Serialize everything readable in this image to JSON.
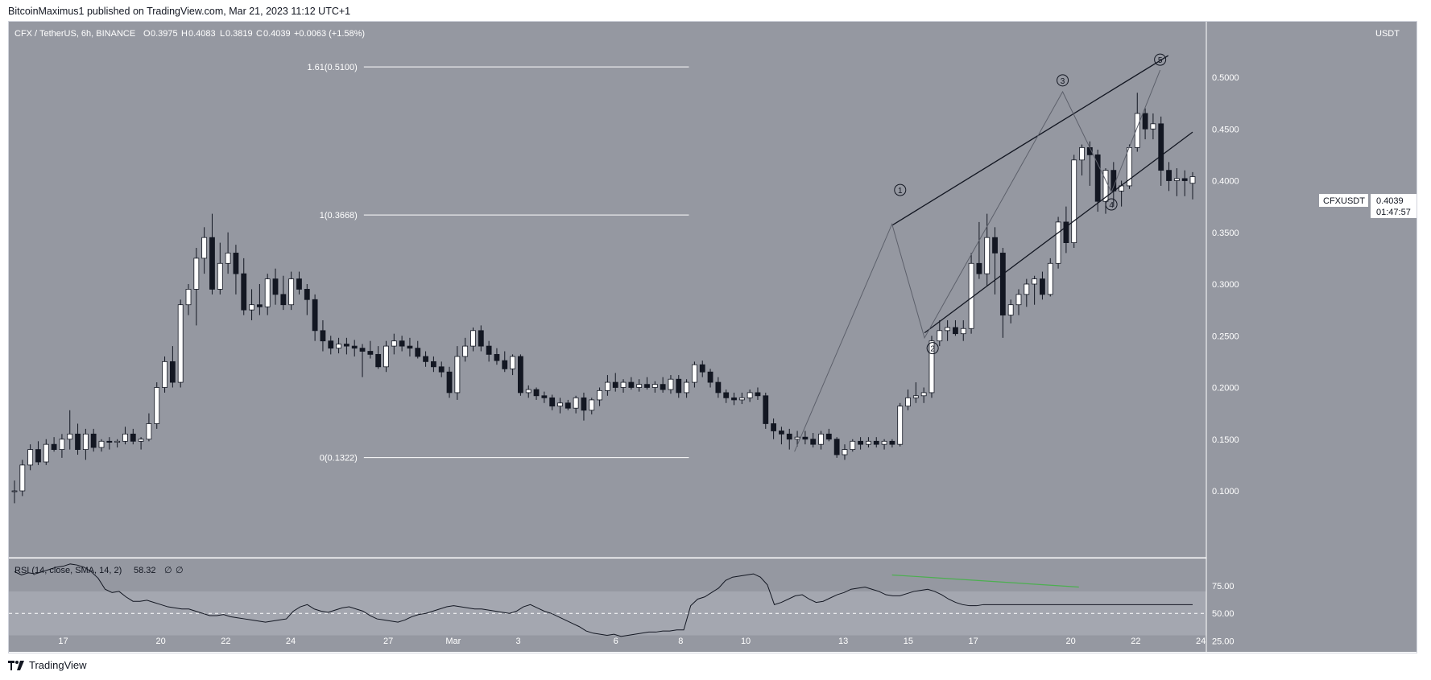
{
  "header": {
    "published_by": "BitcoinMaximus1 published on TradingView.com, Mar 21, 2023 11:12 UTC+1"
  },
  "legend": {
    "symbol": "CFX / TetherUS, 6h, BINANCE",
    "o_label": "O",
    "o_value": "0.3975",
    "h_label": "H",
    "h_value": "0.4083",
    "l_label": "L",
    "l_value": "0.3819",
    "c_label": "C",
    "c_value": "0.4039",
    "change": "+0.0063 (+1.58%)"
  },
  "price_axis": {
    "currency": "USDT",
    "ticks": [
      "0.5000",
      "0.4500",
      "0.4000",
      "0.3500",
      "0.3000",
      "0.2500",
      "0.2000",
      "0.1500",
      "0.1000"
    ]
  },
  "last_price": {
    "symbol": "CFXUSDT",
    "price": "0.4039",
    "countdown": "01:47:57"
  },
  "rsi": {
    "label": "RSI (14, close, SMA, 14, 2)",
    "value": "58.32",
    "extra1": "∅",
    "extra2": "∅",
    "ticks": [
      "75.00",
      "50.00",
      "25.00"
    ]
  },
  "time_axis": {
    "ticks": [
      "17",
      "20",
      "22",
      "24",
      "27",
      "Mar",
      "3",
      "6",
      "8",
      "10",
      "13",
      "15",
      "17",
      "20",
      "22",
      "24"
    ]
  },
  "fib": {
    "levels": [
      {
        "label": "1.61(0.5100)",
        "value": 0.51
      },
      {
        "label": "1(0.3668)",
        "value": 0.3668
      },
      {
        "label": "0(0.1322)",
        "value": 0.1322
      }
    ]
  },
  "waves": [
    "1",
    "2",
    "3",
    "4",
    "5"
  ],
  "colors": {
    "chart_bg": "#9598a1",
    "up_candle": "#ffffff",
    "down_candle": "#131722",
    "divergence": "#4caf50",
    "text": "#ffffff"
  },
  "chart_data": {
    "type": "candlestick",
    "ylim": [
      0.09,
      0.545
    ],
    "x_dates": [
      "2023-02-15T12:00",
      "2023-03-23T18:00"
    ],
    "candles": [
      [
        0.1,
        0.11,
        0.088,
        0.1
      ],
      [
        0.1,
        0.13,
        0.095,
        0.125
      ],
      [
        0.125,
        0.145,
        0.12,
        0.14
      ],
      [
        0.14,
        0.148,
        0.125,
        0.128
      ],
      [
        0.128,
        0.15,
        0.125,
        0.145
      ],
      [
        0.145,
        0.152,
        0.138,
        0.14
      ],
      [
        0.14,
        0.155,
        0.132,
        0.15
      ],
      [
        0.15,
        0.178,
        0.14,
        0.155
      ],
      [
        0.155,
        0.165,
        0.135,
        0.14
      ],
      [
        0.14,
        0.16,
        0.13,
        0.155
      ],
      [
        0.155,
        0.16,
        0.138,
        0.142
      ],
      [
        0.142,
        0.15,
        0.138,
        0.148
      ],
      [
        0.148,
        0.152,
        0.14,
        0.147
      ],
      [
        0.147,
        0.15,
        0.142,
        0.148
      ],
      [
        0.148,
        0.162,
        0.145,
        0.155
      ],
      [
        0.155,
        0.16,
        0.145,
        0.148
      ],
      [
        0.148,
        0.152,
        0.14,
        0.15
      ],
      [
        0.15,
        0.175,
        0.148,
        0.165
      ],
      [
        0.165,
        0.205,
        0.16,
        0.2
      ],
      [
        0.2,
        0.23,
        0.195,
        0.225
      ],
      [
        0.225,
        0.24,
        0.2,
        0.205
      ],
      [
        0.205,
        0.285,
        0.2,
        0.28
      ],
      [
        0.28,
        0.3,
        0.27,
        0.295
      ],
      [
        0.295,
        0.335,
        0.26,
        0.325
      ],
      [
        0.325,
        0.355,
        0.31,
        0.345
      ],
      [
        0.345,
        0.368,
        0.29,
        0.295
      ],
      [
        0.295,
        0.34,
        0.29,
        0.32
      ],
      [
        0.32,
        0.35,
        0.31,
        0.33
      ],
      [
        0.33,
        0.338,
        0.29,
        0.31
      ],
      [
        0.31,
        0.325,
        0.27,
        0.275
      ],
      [
        0.275,
        0.295,
        0.265,
        0.28
      ],
      [
        0.28,
        0.3,
        0.27,
        0.278
      ],
      [
        0.278,
        0.31,
        0.27,
        0.305
      ],
      [
        0.305,
        0.315,
        0.28,
        0.29
      ],
      [
        0.29,
        0.308,
        0.275,
        0.28
      ],
      [
        0.28,
        0.312,
        0.275,
        0.305
      ],
      [
        0.305,
        0.312,
        0.29,
        0.295
      ],
      [
        0.295,
        0.3,
        0.27,
        0.285
      ],
      [
        0.285,
        0.29,
        0.245,
        0.255
      ],
      [
        0.255,
        0.265,
        0.235,
        0.245
      ],
      [
        0.245,
        0.25,
        0.232,
        0.238
      ],
      [
        0.238,
        0.248,
        0.233,
        0.242
      ],
      [
        0.242,
        0.248,
        0.232,
        0.24
      ],
      [
        0.24,
        0.246,
        0.23,
        0.238
      ],
      [
        0.238,
        0.242,
        0.21,
        0.235
      ],
      [
        0.235,
        0.245,
        0.228,
        0.232
      ],
      [
        0.232,
        0.24,
        0.218,
        0.22
      ],
      [
        0.22,
        0.245,
        0.215,
        0.24
      ],
      [
        0.24,
        0.252,
        0.232,
        0.245
      ],
      [
        0.245,
        0.25,
        0.235,
        0.24
      ],
      [
        0.24,
        0.248,
        0.23,
        0.238
      ],
      [
        0.238,
        0.245,
        0.228,
        0.23
      ],
      [
        0.23,
        0.235,
        0.22,
        0.225
      ],
      [
        0.225,
        0.23,
        0.215,
        0.22
      ],
      [
        0.22,
        0.225,
        0.21,
        0.215
      ],
      [
        0.215,
        0.22,
        0.19,
        0.195
      ],
      [
        0.195,
        0.24,
        0.188,
        0.23
      ],
      [
        0.23,
        0.248,
        0.225,
        0.24
      ],
      [
        0.24,
        0.258,
        0.235,
        0.255
      ],
      [
        0.255,
        0.26,
        0.235,
        0.24
      ],
      [
        0.24,
        0.245,
        0.225,
        0.232
      ],
      [
        0.232,
        0.238,
        0.222,
        0.226
      ],
      [
        0.226,
        0.235,
        0.215,
        0.218
      ],
      [
        0.218,
        0.232,
        0.212,
        0.23
      ],
      [
        0.23,
        0.232,
        0.192,
        0.195
      ],
      [
        0.195,
        0.202,
        0.19,
        0.198
      ],
      [
        0.198,
        0.2,
        0.188,
        0.192
      ],
      [
        0.192,
        0.196,
        0.185,
        0.19
      ],
      [
        0.19,
        0.193,
        0.178,
        0.182
      ],
      [
        0.182,
        0.19,
        0.175,
        0.185
      ],
      [
        0.185,
        0.188,
        0.178,
        0.18
      ],
      [
        0.18,
        0.192,
        0.175,
        0.19
      ],
      [
        0.19,
        0.195,
        0.168,
        0.178
      ],
      [
        0.178,
        0.19,
        0.174,
        0.188
      ],
      [
        0.188,
        0.2,
        0.182,
        0.197
      ],
      [
        0.197,
        0.212,
        0.192,
        0.205
      ],
      [
        0.205,
        0.214,
        0.196,
        0.2
      ],
      [
        0.2,
        0.208,
        0.195,
        0.205
      ],
      [
        0.205,
        0.21,
        0.198,
        0.2
      ],
      [
        0.2,
        0.208,
        0.196,
        0.203
      ],
      [
        0.203,
        0.21,
        0.198,
        0.2
      ],
      [
        0.2,
        0.206,
        0.195,
        0.203
      ],
      [
        0.203,
        0.21,
        0.195,
        0.198
      ],
      [
        0.198,
        0.212,
        0.194,
        0.208
      ],
      [
        0.208,
        0.212,
        0.19,
        0.195
      ],
      [
        0.195,
        0.208,
        0.19,
        0.205
      ],
      [
        0.205,
        0.225,
        0.2,
        0.222
      ],
      [
        0.222,
        0.226,
        0.21,
        0.215
      ],
      [
        0.215,
        0.218,
        0.2,
        0.205
      ],
      [
        0.205,
        0.21,
        0.19,
        0.195
      ],
      [
        0.195,
        0.198,
        0.185,
        0.19
      ],
      [
        0.19,
        0.195,
        0.183,
        0.188
      ],
      [
        0.188,
        0.195,
        0.184,
        0.19
      ],
      [
        0.19,
        0.198,
        0.186,
        0.195
      ],
      [
        0.195,
        0.2,
        0.188,
        0.192
      ],
      [
        0.192,
        0.195,
        0.16,
        0.165
      ],
      [
        0.165,
        0.17,
        0.15,
        0.158
      ],
      [
        0.158,
        0.162,
        0.145,
        0.155
      ],
      [
        0.155,
        0.16,
        0.14,
        0.15
      ],
      [
        0.15,
        0.158,
        0.143,
        0.152
      ],
      [
        0.152,
        0.158,
        0.145,
        0.15
      ],
      [
        0.15,
        0.156,
        0.142,
        0.145
      ],
      [
        0.145,
        0.158,
        0.14,
        0.155
      ],
      [
        0.155,
        0.16,
        0.148,
        0.15
      ],
      [
        0.15,
        0.152,
        0.132,
        0.135
      ],
      [
        0.135,
        0.145,
        0.13,
        0.14
      ],
      [
        0.14,
        0.15,
        0.138,
        0.148
      ],
      [
        0.148,
        0.152,
        0.14,
        0.145
      ],
      [
        0.145,
        0.152,
        0.142,
        0.148
      ],
      [
        0.148,
        0.152,
        0.142,
        0.145
      ],
      [
        0.145,
        0.15,
        0.14,
        0.148
      ],
      [
        0.148,
        0.15,
        0.142,
        0.145
      ],
      [
        0.145,
        0.185,
        0.143,
        0.182
      ],
      [
        0.182,
        0.198,
        0.178,
        0.19
      ],
      [
        0.19,
        0.205,
        0.185,
        0.192
      ],
      [
        0.192,
        0.2,
        0.185,
        0.195
      ],
      [
        0.195,
        0.25,
        0.19,
        0.245
      ],
      [
        0.245,
        0.265,
        0.24,
        0.255
      ],
      [
        0.255,
        0.265,
        0.245,
        0.258
      ],
      [
        0.258,
        0.265,
        0.25,
        0.252
      ],
      [
        0.252,
        0.265,
        0.245,
        0.257
      ],
      [
        0.257,
        0.33,
        0.252,
        0.32
      ],
      [
        0.32,
        0.36,
        0.305,
        0.31
      ],
      [
        0.31,
        0.368,
        0.298,
        0.345
      ],
      [
        0.345,
        0.355,
        0.29,
        0.33
      ],
      [
        0.33,
        0.335,
        0.248,
        0.27
      ],
      [
        0.27,
        0.285,
        0.262,
        0.28
      ],
      [
        0.28,
        0.295,
        0.27,
        0.29
      ],
      [
        0.29,
        0.305,
        0.278,
        0.3
      ],
      [
        0.3,
        0.308,
        0.28,
        0.305
      ],
      [
        0.305,
        0.312,
        0.285,
        0.29
      ],
      [
        0.29,
        0.325,
        0.288,
        0.32
      ],
      [
        0.32,
        0.365,
        0.315,
        0.36
      ],
      [
        0.36,
        0.375,
        0.33,
        0.34
      ],
      [
        0.34,
        0.425,
        0.335,
        0.42
      ],
      [
        0.42,
        0.435,
        0.405,
        0.432
      ],
      [
        0.432,
        0.438,
        0.395,
        0.425
      ],
      [
        0.425,
        0.43,
        0.37,
        0.38
      ],
      [
        0.38,
        0.412,
        0.368,
        0.41
      ],
      [
        0.41,
        0.418,
        0.375,
        0.39
      ],
      [
        0.39,
        0.4,
        0.375,
        0.395
      ],
      [
        0.395,
        0.435,
        0.392,
        0.432
      ],
      [
        0.432,
        0.485,
        0.428,
        0.465
      ],
      [
        0.465,
        0.47,
        0.44,
        0.45
      ],
      [
        0.45,
        0.465,
        0.44,
        0.455
      ],
      [
        0.455,
        0.462,
        0.395,
        0.41
      ],
      [
        0.41,
        0.418,
        0.39,
        0.4
      ],
      [
        0.4,
        0.412,
        0.385,
        0.402
      ],
      [
        0.402,
        0.41,
        0.385,
        0.4
      ],
      [
        0.3975,
        0.4083,
        0.3819,
        0.4039
      ]
    ],
    "channel_upper": [
      [
        "2023-03-14T12:00",
        0.3568
      ],
      [
        "2023-03-23T00:00",
        0.521
      ]
    ],
    "channel_lower": [
      [
        "2023-03-15T12:00",
        0.2528
      ],
      [
        "2023-03-23T18:00",
        0.447
      ]
    ],
    "wave_path": [
      [
        "2023-03-11T12:00",
        0.138
      ],
      [
        "2023-03-14T12:00",
        0.358
      ],
      [
        "2023-03-15T12:00",
        0.248
      ],
      [
        "2023-03-19T18:00",
        0.486
      ],
      [
        "2023-03-21T06:00",
        0.389
      ],
      [
        "2023-03-22T18:00",
        0.507
      ]
    ],
    "wave_labels": [
      [
        "2023-03-14T18:00",
        0.391
      ],
      [
        "2023-03-15T18:00",
        0.238
      ],
      [
        "2023-03-19T18:00",
        0.497
      ],
      [
        "2023-03-21T06:00",
        0.377
      ],
      [
        "2023-03-22T18:00",
        0.517
      ]
    ],
    "fib_x_range": [
      "2023-02-26T06:00",
      "2023-03-08T06:00"
    ],
    "rsi_ylim": [
      15,
      100
    ],
    "rsi_values": [
      88,
      85,
      87,
      86,
      88,
      90,
      92,
      93,
      95,
      94,
      92,
      88,
      82,
      72,
      69,
      70,
      65,
      61,
      61,
      62,
      60,
      58,
      56,
      55,
      54,
      54,
      52,
      50,
      48,
      48,
      49,
      47,
      46,
      45,
      44,
      43,
      42,
      43,
      44,
      45,
      52,
      56,
      58,
      54,
      52,
      51,
      53,
      55,
      56,
      54,
      52,
      48,
      45,
      44,
      43,
      42,
      44,
      47,
      49,
      50,
      52,
      54,
      56,
      57,
      56,
      55,
      54,
      54,
      53,
      52,
      51,
      50,
      52,
      56,
      58,
      55,
      52,
      50,
      47,
      44,
      41,
      38,
      34,
      32,
      31,
      30,
      31,
      29,
      30,
      31,
      32,
      33,
      33,
      34,
      34,
      35,
      35,
      57,
      63,
      65,
      69,
      73,
      80,
      83,
      84,
      85,
      86,
      83,
      76,
      58,
      60,
      63,
      66,
      67,
      63,
      60,
      61,
      64,
      67,
      69,
      72,
      73,
      74,
      72,
      70,
      67,
      66,
      66,
      68,
      70,
      71,
      72,
      70,
      67,
      63,
      60,
      58,
      57,
      57,
      58,
      58,
      58,
      58,
      58,
      58,
      58,
      58,
      58,
      58,
      58,
      58,
      58,
      58,
      58,
      58,
      58,
      58,
      58,
      58,
      58,
      58,
      58,
      58,
      58,
      58,
      58,
      58,
      58,
      58,
      58
    ],
    "rsi_divergence": [
      [
        "2023-03-14T12:00",
        85
      ],
      [
        "2023-03-20T06:00",
        74
      ]
    ],
    "rsi_band": [
      30,
      70
    ]
  }
}
